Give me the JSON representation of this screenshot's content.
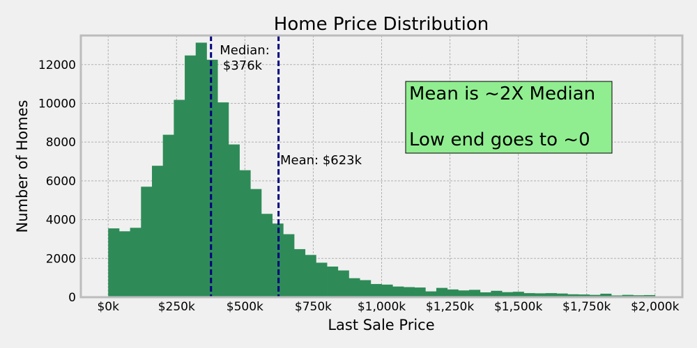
{
  "chart_data": {
    "type": "bar",
    "title": "Home Price Distribution",
    "xlabel": "Last Sale Price",
    "ylabel": "Number of Homes",
    "xlim": [
      -100,
      2100
    ],
    "ylim": [
      0,
      13500
    ],
    "bin_width": 40,
    "bin_start": 0,
    "x_ticks": [
      0,
      250,
      500,
      750,
      1000,
      1250,
      1500,
      1750,
      2000
    ],
    "x_tick_labels": [
      "$0k",
      "$250k",
      "$500k",
      "$750k",
      "$1,000k",
      "$1,250k",
      "$1,500k",
      "$1,750k",
      "$2,000k"
    ],
    "y_ticks": [
      0,
      2000,
      4000,
      6000,
      8000,
      10000,
      12000
    ],
    "y_tick_labels": [
      "0",
      "2000",
      "4000",
      "6000",
      "8000",
      "10000",
      "12000"
    ],
    "grid": true,
    "bar_color": "#2e8b57",
    "values": [
      3550,
      3400,
      3580,
      5700,
      6780,
      8380,
      10180,
      12470,
      13130,
      12250,
      10050,
      7880,
      6550,
      5580,
      4300,
      3800,
      3250,
      2480,
      2180,
      1780,
      1580,
      1380,
      980,
      880,
      680,
      650,
      550,
      520,
      500,
      300,
      480,
      400,
      350,
      380,
      250,
      330,
      260,
      280,
      210,
      200,
      210,
      190,
      150,
      140,
      120,
      180,
      90,
      120,
      100,
      110
    ],
    "reference_lines": [
      {
        "value": 376,
        "label_line1": "Median:",
        "label_line2": "$376k",
        "color": "#00007f"
      },
      {
        "value": 623,
        "label": "Mean: $623k",
        "color": "#00007f"
      }
    ],
    "annotation_box": {
      "lines": [
        "Mean is ~2X Median",
        "Low end goes to ~0"
      ],
      "background": "#90ee90"
    }
  }
}
